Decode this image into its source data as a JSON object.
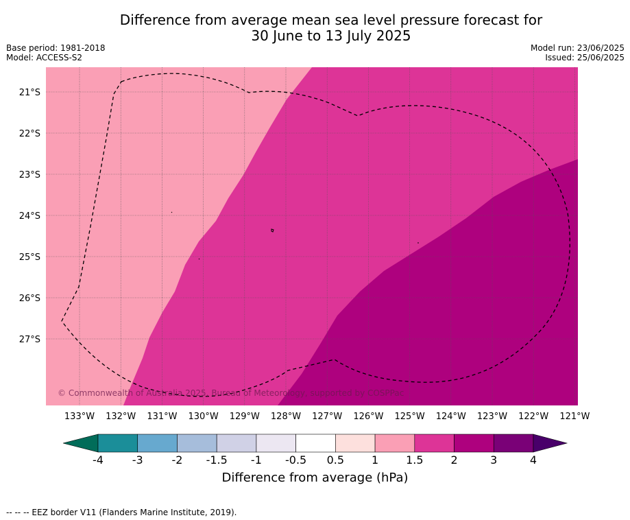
{
  "title_line1": "Difference from average mean sea level pressure forecast for",
  "title_line2": "30 June to 13 July 2025",
  "base_period": "Base period: 1981-2018",
  "model": "Model: ACCESS-S2",
  "model_run": "Model run: 23/06/2025",
  "issued": "Issued: 25/06/2025",
  "copyright": "© Commonwealth of Australia 2025, Bureau of Meteorology, supported by COSPPac",
  "lat_labels": [
    "21°S",
    "22°S",
    "23°S",
    "24°S",
    "25°S",
    "26°S",
    "27°S"
  ],
  "lon_labels": [
    "133°W",
    "132°W",
    "131°W",
    "130°W",
    "129°W",
    "128°W",
    "127°W",
    "126°W",
    "125°W",
    "124°W",
    "123°W",
    "122°W",
    "121°W"
  ],
  "colorbar": {
    "ticks": [
      "-4",
      "-3",
      "-2",
      "-1.5",
      "-1",
      "-0.5",
      "0.5",
      "1",
      "1.5",
      "2",
      "3",
      "4"
    ],
    "colors": [
      "#1b8e99",
      "#67a9cf",
      "#a6bddb",
      "#d0d1e6",
      "#ece7f2",
      "#ffffff",
      "#fde0dd",
      "#fa9fb5",
      "#dd3497",
      "#ae017e",
      "#7a0177"
    ],
    "low_extend_color": "#016c59",
    "high_extend_color": "#49006a",
    "label": "Difference from average (hPa)"
  },
  "map_colors": {
    "band_1_1_5": "#fa9fb5",
    "band_1_5_2": "#dd3497",
    "band_2_3": "#ae017e"
  },
  "footer": "--  --  -- EEZ border V11 (Flanders Marine Institute, 2019)."
}
